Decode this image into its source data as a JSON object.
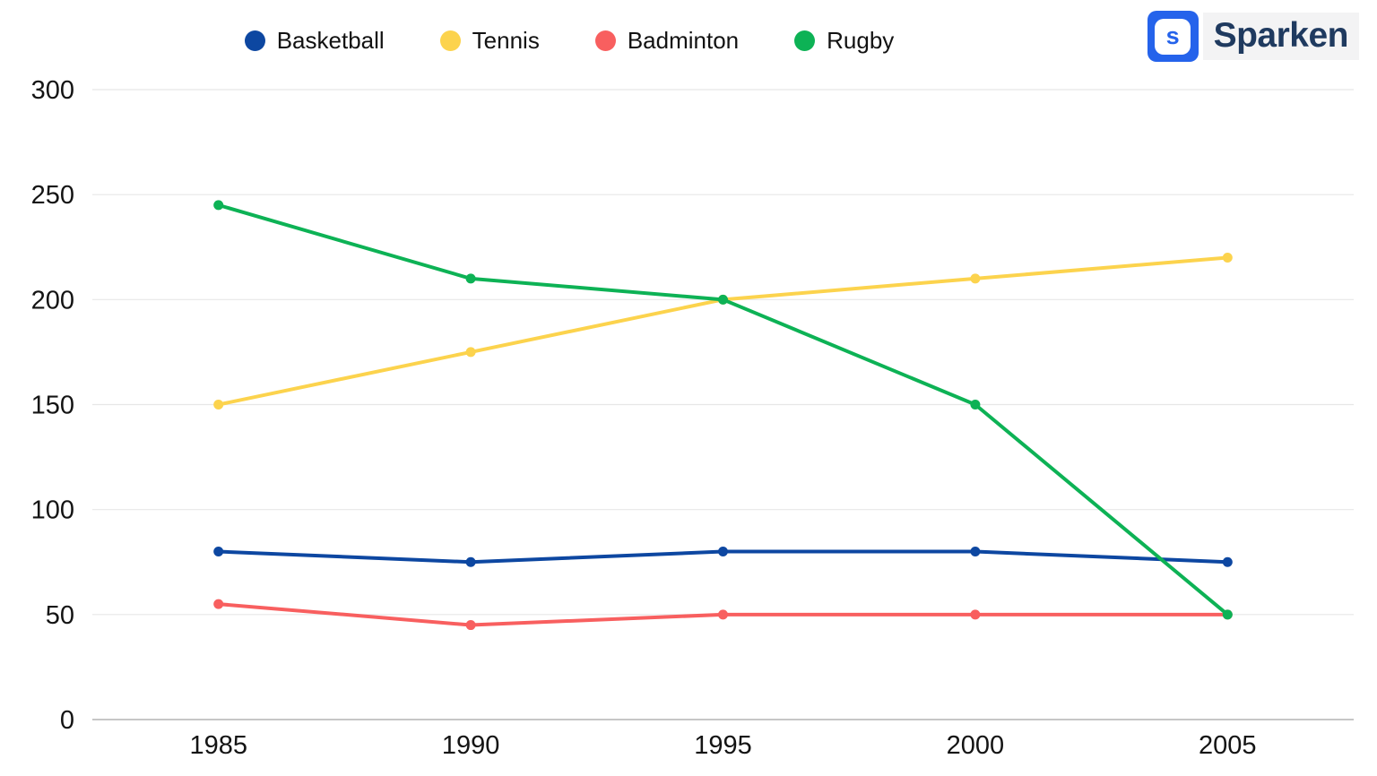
{
  "logo": {
    "name": "Sparken",
    "icon_letter": "s",
    "icon_color": "#2563eb",
    "text_color": "#1f3a5f"
  },
  "chart_data": {
    "type": "line",
    "categories": [
      "1985",
      "1990",
      "1995",
      "2000",
      "2005"
    ],
    "series": [
      {
        "name": "Basketball",
        "color": "#0d47a1",
        "values": [
          80,
          75,
          80,
          80,
          75
        ]
      },
      {
        "name": "Tennis",
        "color": "#fcd34d",
        "values": [
          150,
          175,
          200,
          210,
          220
        ]
      },
      {
        "name": "Badminton",
        "color": "#f85f5f",
        "values": [
          55,
          45,
          50,
          50,
          50
        ]
      },
      {
        "name": "Rugby",
        "color": "#0db255",
        "values": [
          245,
          210,
          200,
          150,
          50
        ]
      }
    ],
    "ylim": [
      0,
      300
    ],
    "yticks": [
      0,
      50,
      100,
      150,
      200,
      250,
      300
    ],
    "grid": true,
    "legend_position": "top",
    "grid_color": "#e7e7e7",
    "axis_line_color": "#b3b3b3",
    "title": "",
    "xlabel": "",
    "ylabel": ""
  }
}
